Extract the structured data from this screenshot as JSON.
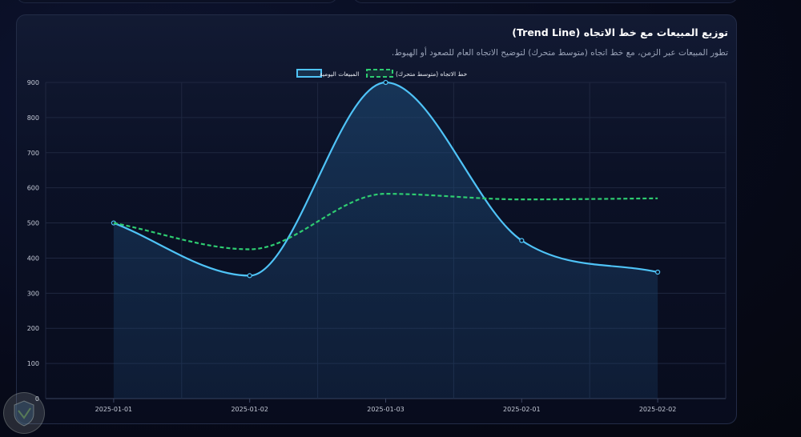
{
  "panel": {
    "title": "توزيع المبيعات مع خط الاتجاه (Trend Line)",
    "subtitle": "تطور المبيعات عبر الزمن، مع خط اتجاه (متوسط متحرك) لتوضيح الاتجاه العام للصعود أو الهبوط."
  },
  "chart_data": {
    "type": "line",
    "categories": [
      "2025-01-01",
      "2025-01-02",
      "2025-01-03",
      "2025-02-01",
      "2025-02-02"
    ],
    "yticks": [
      0,
      100,
      200,
      300,
      400,
      500,
      600,
      700,
      800,
      900
    ],
    "ylim": [
      0,
      900
    ],
    "grid": true,
    "legend_position": "top-center",
    "series": [
      {
        "name": "المبيعات اليومية",
        "values": [
          500,
          350,
          900,
          450,
          360
        ],
        "color": "#4fc3f7",
        "style": "solid-filled"
      },
      {
        "name": "خط الاتجاه (متوسط متحرك)",
        "values": [
          500,
          425,
          583,
          567,
          570
        ],
        "color": "#2ecc71",
        "style": "dashed"
      }
    ]
  }
}
